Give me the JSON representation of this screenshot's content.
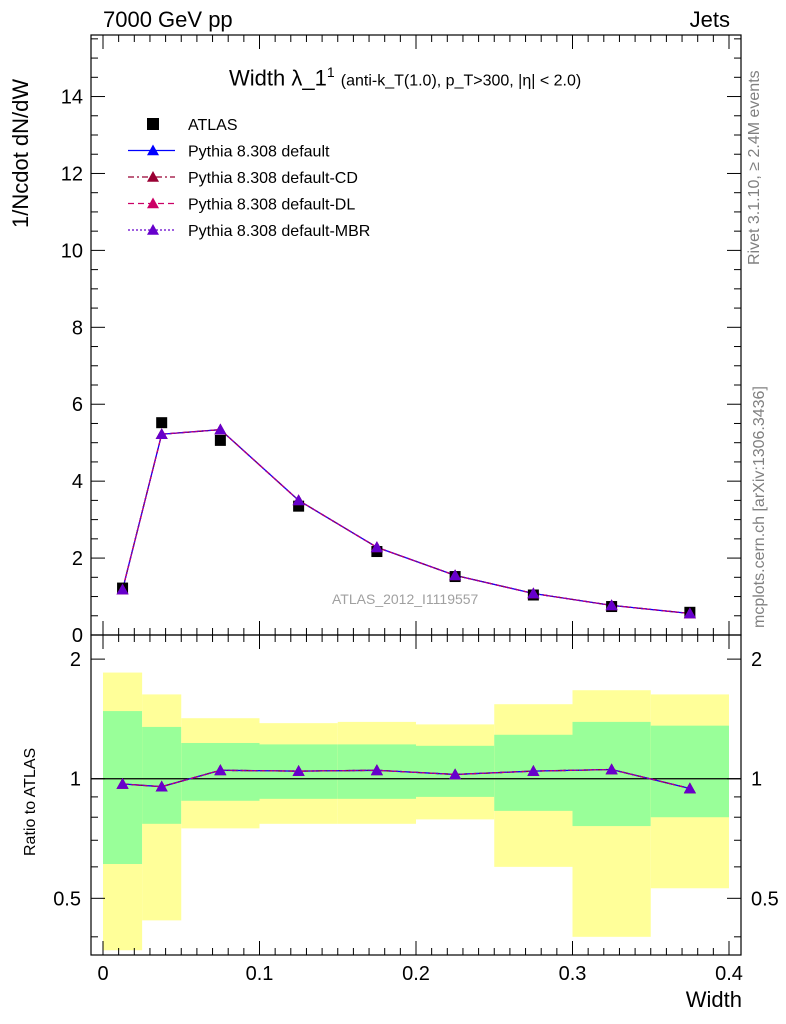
{
  "header": {
    "left": "7000 GeV pp",
    "right": "Jets"
  },
  "side_labels": {
    "rivet": "Rivet 3.1.10, ≥ 2.4M events",
    "mcplots": "mcplots.cern.ch [arXiv:1306.3436]"
  },
  "title": {
    "main": "Width λ_1",
    "sup": "1",
    "sub": "(anti-k_T(1.0), p_T>300, |η| < 2.0)"
  },
  "analysis_id": "ATLAS_2012_I1119557",
  "colors": {
    "band_inner": "#99ff99",
    "band_outer": "#ffff99",
    "default": "#0000ff",
    "cd": "#990033",
    "dl": "#cc0066",
    "mbr": "#6600cc"
  },
  "chart_data": [
    {
      "type": "scatter",
      "panel": "main",
      "ylabel": "1/Ncdot dN/dW",
      "xlim": [
        0,
        0.4
      ],
      "ylim": [
        0,
        15.6
      ],
      "yticks": [
        0,
        2,
        4,
        6,
        8,
        10,
        12,
        14
      ],
      "x": [
        0.0125,
        0.0375,
        0.075,
        0.125,
        0.175,
        0.225,
        0.275,
        0.325,
        0.375
      ],
      "legend_placement": "top-left",
      "series": [
        {
          "name": "ATLAS",
          "style": "square-marker",
          "color": "#000000",
          "values": [
            1.22,
            5.52,
            5.06,
            3.35,
            2.17,
            1.52,
            1.04,
            0.74,
            0.59
          ]
        },
        {
          "name": "Pythia 8.308 default",
          "style": "solid",
          "color": "#0000ff",
          "values": [
            1.18,
            5.22,
            5.34,
            3.5,
            2.28,
            1.55,
            1.08,
            0.77,
            0.56
          ]
        },
        {
          "name": "Pythia 8.308 default-CD",
          "style": "dashdot",
          "color": "#990033",
          "values": [
            1.18,
            5.22,
            5.34,
            3.5,
            2.28,
            1.55,
            1.08,
            0.77,
            0.56
          ]
        },
        {
          "name": "Pythia 8.308 default-DL",
          "style": "dashed",
          "color": "#cc0066",
          "values": [
            1.18,
            5.22,
            5.34,
            3.5,
            2.28,
            1.55,
            1.08,
            0.77,
            0.56
          ]
        },
        {
          "name": "Pythia 8.308 default-MBR",
          "style": "dotted",
          "color": "#6600cc",
          "values": [
            1.18,
            5.22,
            5.34,
            3.5,
            2.28,
            1.55,
            1.08,
            0.77,
            0.56
          ]
        }
      ]
    },
    {
      "type": "line",
      "panel": "ratio",
      "xlabel": "Width",
      "ylabel": "Ratio to ATLAS",
      "xlim": [
        0,
        0.4
      ],
      "ylim": [
        0.36,
        2.3
      ],
      "xticks": [
        0,
        0.1,
        0.2,
        0.3,
        0.4
      ],
      "xtick_labels": [
        "0",
        "0.1",
        "0.2",
        "0.3",
        "0.4"
      ],
      "yticks": [
        0.5,
        1,
        2
      ],
      "ytick_labels": [
        "0.5",
        "1",
        "2"
      ],
      "bins": [
        [
          0.0,
          0.025
        ],
        [
          0.025,
          0.05
        ],
        [
          0.05,
          0.1
        ],
        [
          0.1,
          0.15
        ],
        [
          0.15,
          0.2
        ],
        [
          0.2,
          0.25
        ],
        [
          0.25,
          0.3
        ],
        [
          0.3,
          0.35
        ],
        [
          0.35,
          0.4
        ]
      ],
      "band_inner": {
        "low": [
          0.61,
          0.77,
          0.88,
          0.89,
          0.89,
          0.9,
          0.83,
          0.76,
          0.8
        ],
        "high": [
          1.48,
          1.35,
          1.23,
          1.22,
          1.22,
          1.21,
          1.29,
          1.39,
          1.36
        ]
      },
      "band_outer": {
        "low": [
          0.37,
          0.44,
          0.75,
          0.77,
          0.77,
          0.79,
          0.6,
          0.4,
          0.53
        ],
        "high": [
          1.85,
          1.63,
          1.42,
          1.38,
          1.39,
          1.37,
          1.54,
          1.67,
          1.63
        ]
      },
      "x": [
        0.0125,
        0.0375,
        0.075,
        0.125,
        0.175,
        0.225,
        0.275,
        0.325,
        0.375
      ],
      "series": [
        {
          "name": "Pythia 8.308 default",
          "values": [
            0.97,
            0.955,
            1.05,
            1.045,
            1.05,
            1.025,
            1.045,
            1.055,
            0.945
          ]
        },
        {
          "name": "Pythia 8.308 default-CD",
          "values": [
            0.97,
            0.955,
            1.05,
            1.045,
            1.05,
            1.025,
            1.045,
            1.055,
            0.945
          ]
        },
        {
          "name": "Pythia 8.308 default-DL",
          "values": [
            0.97,
            0.955,
            1.05,
            1.045,
            1.05,
            1.025,
            1.045,
            1.055,
            0.945
          ]
        },
        {
          "name": "Pythia 8.308 default-MBR",
          "values": [
            0.97,
            0.955,
            1.05,
            1.045,
            1.05,
            1.025,
            1.045,
            1.055,
            0.945
          ]
        }
      ]
    }
  ]
}
